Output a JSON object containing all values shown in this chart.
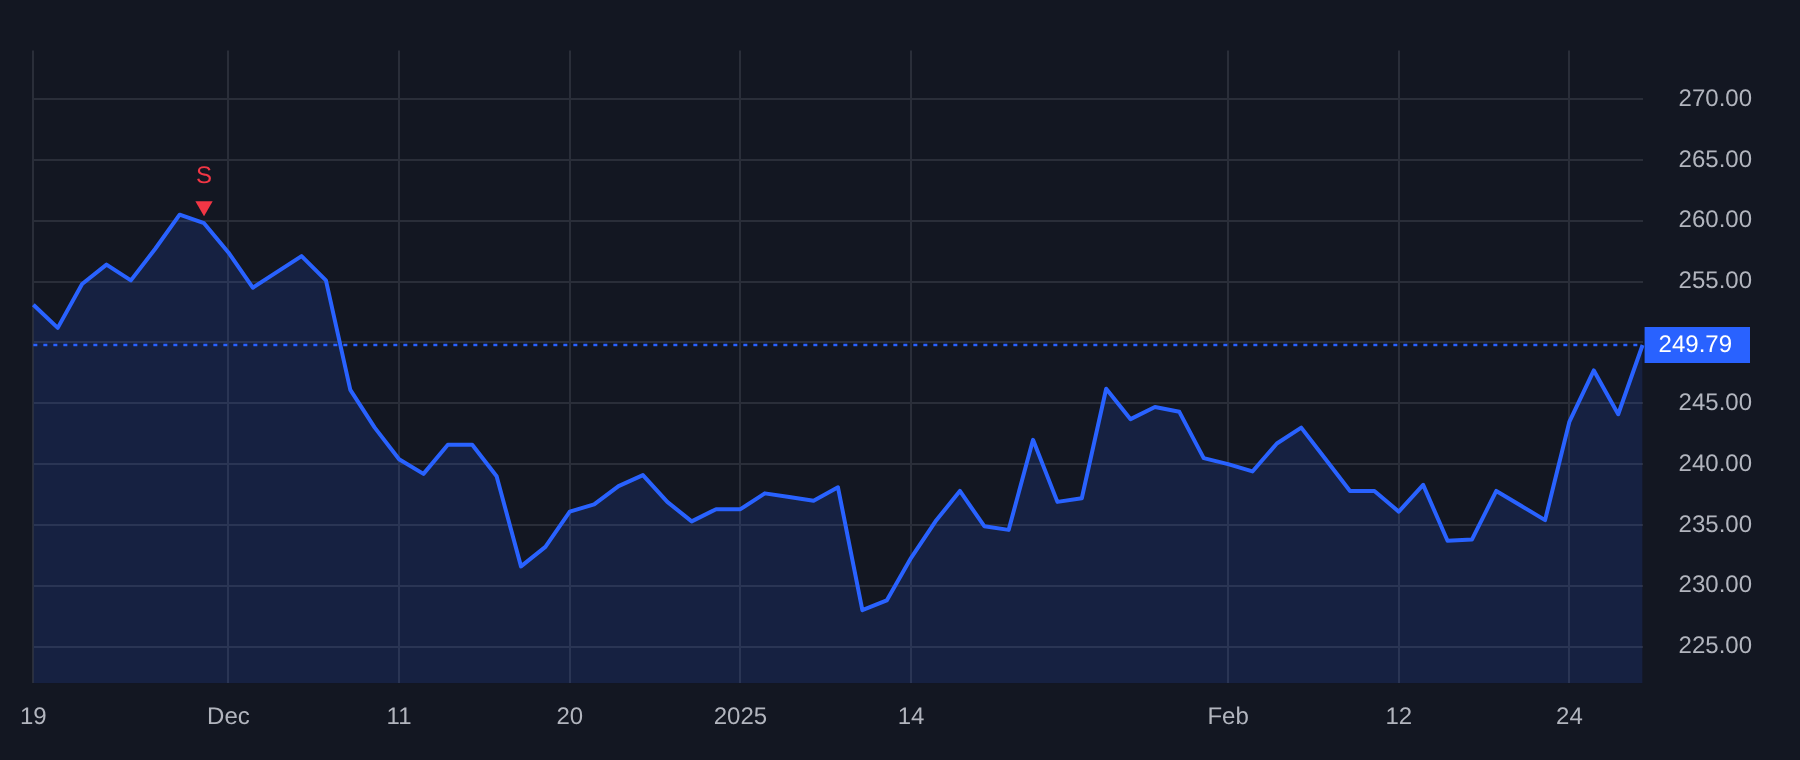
{
  "chart_data": {
    "type": "area",
    "categories": [
      "19",
      null,
      null,
      null,
      null,
      null,
      null,
      null,
      "Dec",
      null,
      null,
      null,
      null,
      null,
      null,
      "11",
      null,
      null,
      null,
      null,
      null,
      null,
      "20",
      null,
      null,
      null,
      null,
      null,
      null,
      "2025",
      null,
      null,
      null,
      null,
      null,
      null,
      "14",
      null,
      null,
      null,
      null,
      null,
      null,
      null,
      null,
      null,
      null,
      null,
      null,
      "Feb",
      null,
      null,
      null,
      null,
      null,
      null,
      "12",
      null,
      null,
      null,
      null,
      null,
      null,
      "24",
      null,
      null,
      null
    ],
    "series": [
      {
        "color": "#2962ff",
        "values": [
          253.1,
          251.2,
          254.8,
          256.4,
          255.1,
          257.7,
          260.5,
          259.8,
          257.4,
          254.5,
          255.8,
          257.1,
          255.1,
          246.1,
          243.0,
          240.4,
          239.2,
          241.6,
          241.6,
          239.0,
          231.6,
          233.2,
          236.1,
          236.7,
          238.2,
          239.1,
          236.9,
          235.3,
          236.3,
          236.3,
          237.6,
          237.3,
          237.0,
          238.1,
          228.0,
          228.8,
          232.3,
          235.3,
          237.8,
          234.9,
          234.6,
          242.0,
          236.9,
          237.2,
          246.2,
          243.7,
          244.7,
          244.3,
          240.5,
          240.0,
          239.4,
          241.7,
          243.0,
          240.4,
          237.8,
          237.8,
          236.1,
          238.3,
          233.7,
          233.8,
          237.8,
          236.6,
          235.4,
          243.5,
          247.7,
          244.1,
          249.79
        ]
      },
      {
        "type": "scatter",
        "color": "#f23645",
        "marker": "triangle",
        "values": [
          null,
          null,
          null,
          null,
          null,
          null,
          null,
          261.2,
          null,
          null,
          null,
          null,
          null,
          null,
          null,
          null,
          null,
          null,
          null,
          null,
          null,
          null,
          null,
          null,
          null,
          null,
          null,
          null,
          null,
          null,
          null,
          null,
          null,
          null,
          null,
          null,
          null,
          null,
          null,
          null,
          null,
          null,
          null,
          null,
          null,
          null,
          null,
          null,
          null,
          null,
          null,
          null,
          null,
          null,
          null,
          null,
          null,
          null,
          null,
          null,
          null,
          null,
          null,
          null,
          null,
          null,
          null
        ]
      }
    ],
    "annotations": [
      "S"
    ],
    "ylim": [
      222,
      274
    ],
    "yticks": [
      {
        "value": 225,
        "label": "225.00"
      },
      {
        "value": 230,
        "label": "230.00"
      },
      {
        "value": 235,
        "label": "235.00"
      },
      {
        "value": 240,
        "label": "240.00"
      },
      {
        "value": 245,
        "label": "245.00"
      },
      {
        "value": 250,
        "label": null
      },
      {
        "value": 255,
        "label": "255.00"
      },
      {
        "value": 260,
        "label": "260.00"
      },
      {
        "value": 265,
        "label": "265.00"
      },
      {
        "value": 270,
        "label": "270.00"
      }
    ],
    "ref_lines": [
      {
        "axis": "y",
        "value": 249.79,
        "label": "249.79",
        "color": "#2962ff",
        "line_style": "dotted"
      }
    ],
    "grid": true,
    "legend": false
  }
}
